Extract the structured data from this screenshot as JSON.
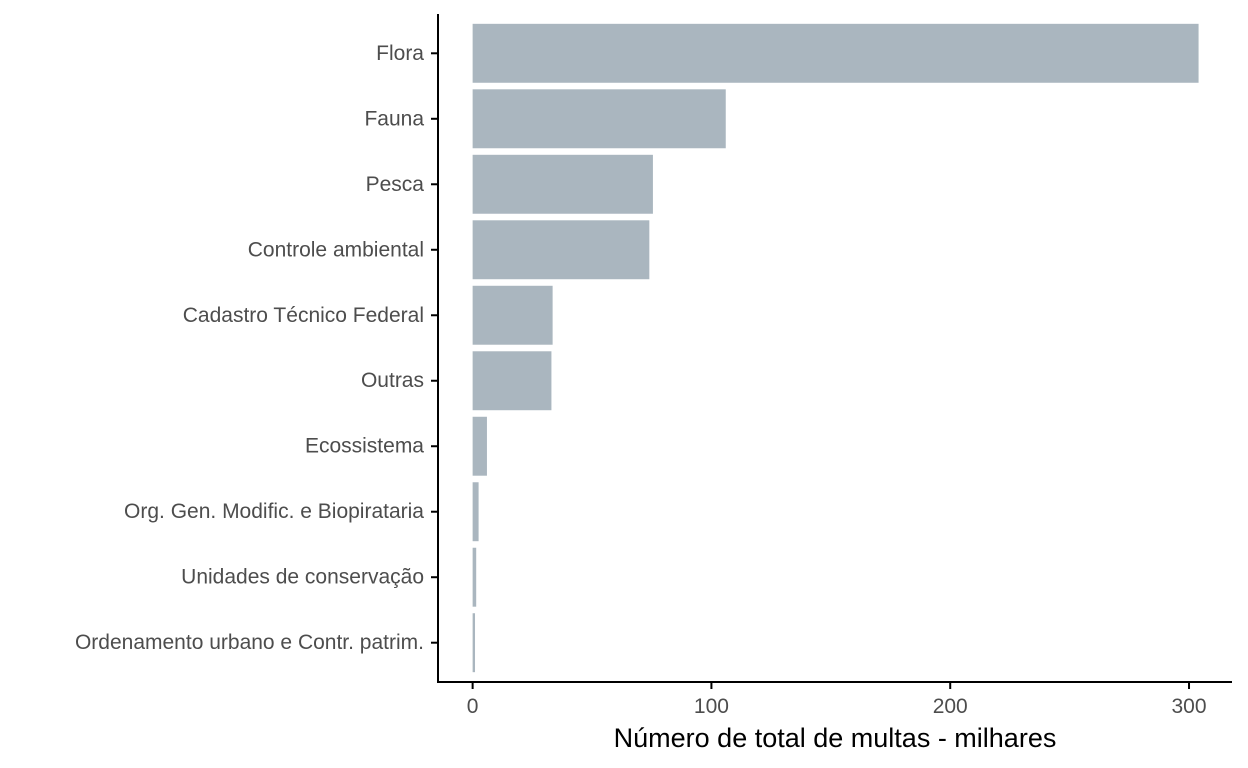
{
  "chart_data": {
    "type": "bar",
    "orientation": "horizontal",
    "categories": [
      "Flora",
      "Fauna",
      "Pesca",
      "Controle ambiental",
      "Cadastro Técnico Federal",
      "Outras",
      "Ecossistema",
      "Org. Gen. Modific. e Biopirataria",
      "Unidades de conservação",
      "Ordenamento urbano e Contr. patrim."
    ],
    "values": [
      304,
      106,
      75.5,
      74,
      33.5,
      33,
      6,
      2.5,
      1.5,
      1
    ],
    "xlabel": "Número de total de multas - milhares",
    "ylabel": "",
    "title": "",
    "xlim": [
      -14.5,
      318
    ],
    "xticks": [
      0,
      100,
      200,
      300
    ],
    "bar_color": "#aab6bf",
    "axis_color": "#000000",
    "tick_label_color": "#4d4d4d",
    "grid": false,
    "legend": "none"
  }
}
